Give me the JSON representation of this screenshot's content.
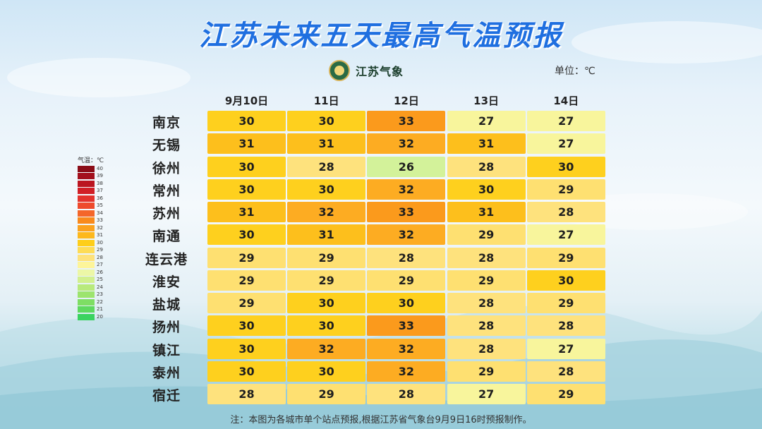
{
  "title": "江苏未来五天最高气温预报",
  "logo": {
    "name": "江苏气象",
    "icon": "jiangsu-meteorology-emblem-icon"
  },
  "unit_label": "单位：℃",
  "legend": {
    "title": "气温：℃",
    "items": [
      {
        "value": "40",
        "color": "#8b0d18"
      },
      {
        "value": "39",
        "color": "#a3101d"
      },
      {
        "value": "38",
        "color": "#bb1520"
      },
      {
        "value": "37",
        "color": "#d11f26"
      },
      {
        "value": "36",
        "color": "#e3322c"
      },
      {
        "value": "35",
        "color": "#ee4a2c"
      },
      {
        "value": "34",
        "color": "#f4662a"
      },
      {
        "value": "33",
        "color": "#f98a1c"
      },
      {
        "value": "32",
        "color": "#fba21e"
      },
      {
        "value": "31",
        "color": "#fdb81c"
      },
      {
        "value": "30",
        "color": "#fece1a"
      },
      {
        "value": "29",
        "color": "#fedc55"
      },
      {
        "value": "28",
        "color": "#fee27a"
      },
      {
        "value": "27",
        "color": "#fdf59a"
      },
      {
        "value": "26",
        "color": "#ecf7a6"
      },
      {
        "value": "25",
        "color": "#d2f08e"
      },
      {
        "value": "24",
        "color": "#b8ea7c"
      },
      {
        "value": "23",
        "color": "#9ce46e"
      },
      {
        "value": "22",
        "color": "#7ede64"
      },
      {
        "value": "21",
        "color": "#5ed95f"
      },
      {
        "value": "20",
        "color": "#3ad360"
      }
    ]
  },
  "chart_data": {
    "type": "heatmap",
    "title": "江苏未来五天最高气温预报",
    "columns": [
      "9月10日",
      "11日",
      "12日",
      "13日",
      "14日"
    ],
    "rows": [
      "南京",
      "无锡",
      "徐州",
      "常州",
      "苏州",
      "南通",
      "连云港",
      "淮安",
      "盐城",
      "扬州",
      "镇江",
      "泰州",
      "宿迁"
    ],
    "values": [
      [
        30,
        30,
        33,
        27,
        27
      ],
      [
        31,
        31,
        32,
        31,
        27
      ],
      [
        30,
        28,
        26,
        28,
        30
      ],
      [
        30,
        30,
        32,
        30,
        29
      ],
      [
        31,
        32,
        33,
        31,
        28
      ],
      [
        30,
        31,
        32,
        29,
        27
      ],
      [
        29,
        29,
        28,
        28,
        29
      ],
      [
        29,
        29,
        29,
        29,
        30
      ],
      [
        29,
        30,
        30,
        28,
        29
      ],
      [
        30,
        30,
        33,
        28,
        28
      ],
      [
        30,
        32,
        32,
        28,
        27
      ],
      [
        30,
        30,
        32,
        29,
        28
      ],
      [
        28,
        29,
        28,
        27,
        29
      ]
    ],
    "colors": {
      "33": "#fb9a1c",
      "32": "#fdac22",
      "31": "#fdbf1c",
      "30": "#fed01e",
      "29": "#fee071",
      "28": "#fee27d",
      "27": "#f8f59c",
      "26": "#d3f29a"
    }
  },
  "note": "注：本图为各城市单个站点预报,根据江苏省气象台9月9日16时预报制作。"
}
